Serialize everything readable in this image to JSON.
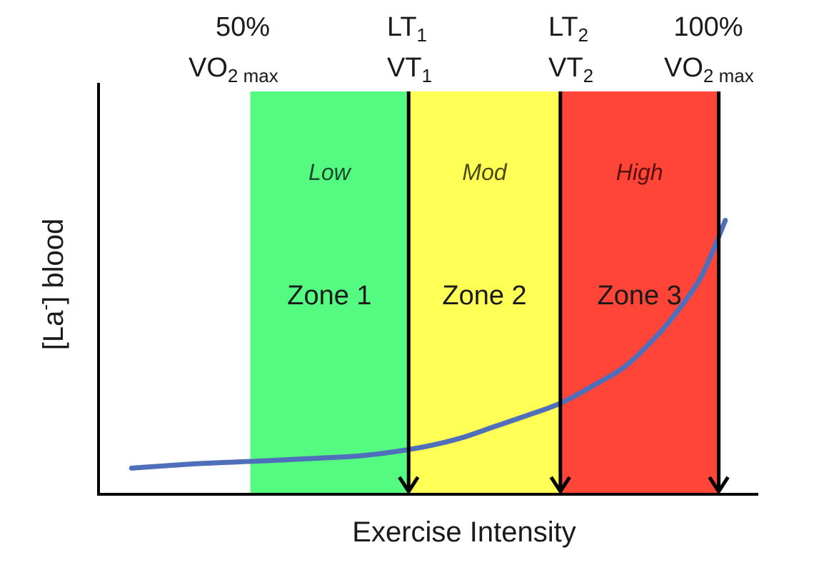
{
  "chart_data": {
    "type": "area",
    "xlabel": "Exercise Intensity",
    "ylabel": {
      "main": "[La",
      "sup": "-",
      "tail": "] blood"
    },
    "xlim": [
      0,
      100
    ],
    "ylim": [
      0,
      100
    ],
    "top_labels": [
      {
        "id": "vo2-50",
        "line1": "50%",
        "line2_main": "VO",
        "line2_sub": "2 max"
      },
      {
        "id": "lt1",
        "line1_main": "LT",
        "line1_sub": "1",
        "line2_main": "VT",
        "line2_sub": "1"
      },
      {
        "id": "lt2",
        "line1_main": "LT",
        "line1_sub": "2",
        "line2_main": "VT",
        "line2_sub": "2"
      },
      {
        "id": "vo2-100",
        "line1": "100%",
        "line2_main": "VO",
        "line2_sub": "2 max"
      }
    ],
    "zones": [
      {
        "name": "Zone 1",
        "level": "Low",
        "x_start": 23,
        "x_end": 47,
        "color": "#55fa80",
        "text_color": "#1c4a2a"
      },
      {
        "name": "Zone 2",
        "level": "Mod",
        "x_start": 47,
        "x_end": 70,
        "color": "#ffff55",
        "text_color": "#4a4a10"
      },
      {
        "name": "Zone 3",
        "level": "High",
        "x_start": 70,
        "x_end": 94,
        "color": "#ff4438",
        "text_color": "#5a0f0f"
      }
    ],
    "thresholds": [
      {
        "name": "LT1/VT1",
        "x": 47
      },
      {
        "name": "LT2/VT2",
        "x": 70
      },
      {
        "name": "100% VO2max",
        "x": 94
      }
    ],
    "series": [
      {
        "name": "Blood lactate",
        "color": "#4f6fba",
        "x": [
          5,
          15,
          25,
          35,
          40,
          45,
          50,
          55,
          60,
          65,
          70,
          75,
          80,
          85,
          88,
          91,
          93,
          95
        ],
        "y": [
          6.5,
          7.6,
          8.3,
          9.1,
          9.6,
          10.6,
          12,
          14,
          16.8,
          19.6,
          22.6,
          27,
          32,
          40,
          46,
          53,
          60,
          68
        ]
      }
    ]
  }
}
